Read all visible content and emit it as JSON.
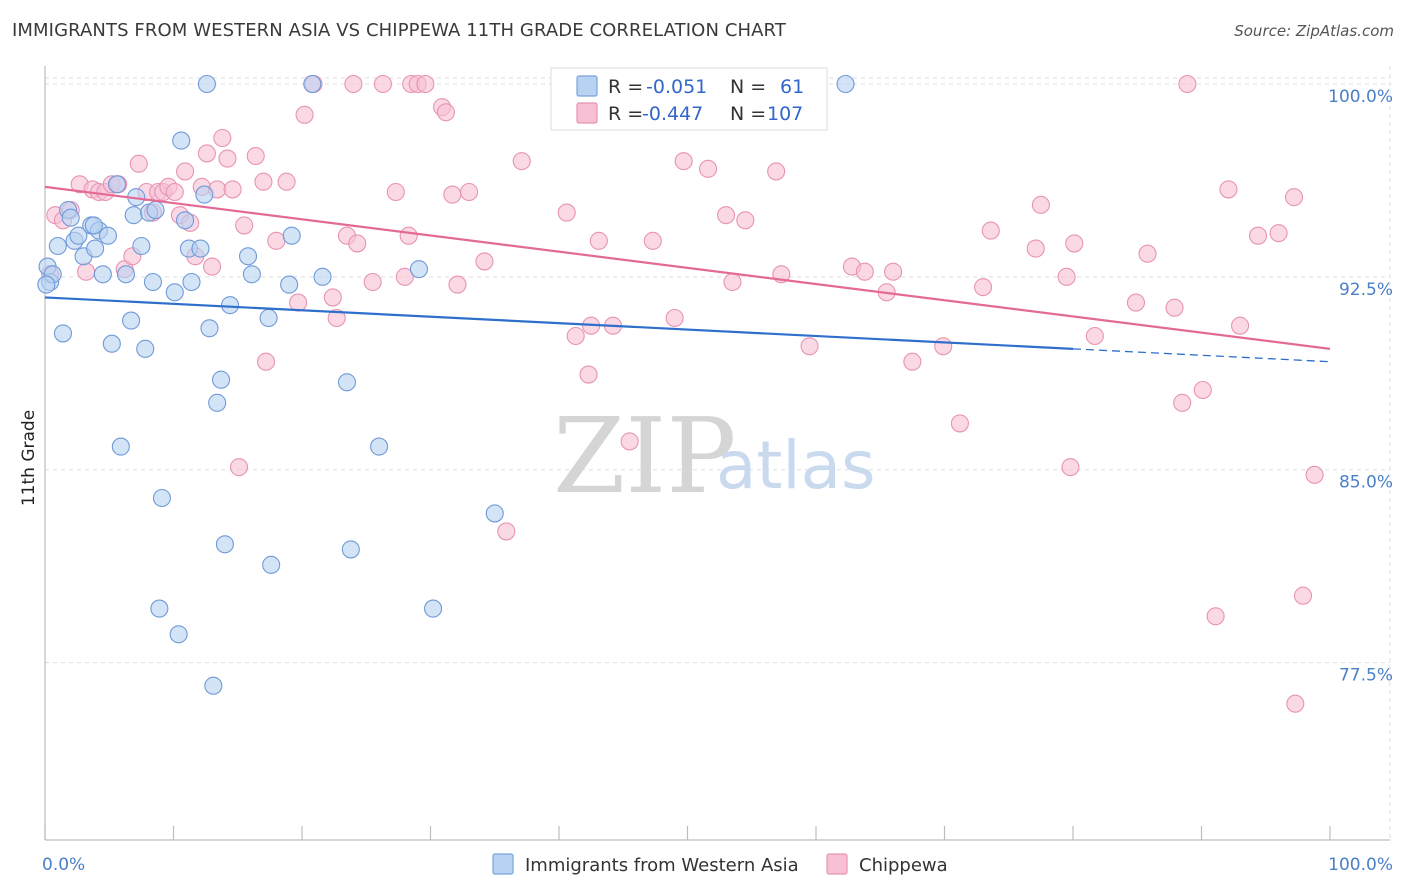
{
  "header": {
    "title": "IMMIGRANTS FROM WESTERN ASIA VS CHIPPEWA 11TH GRADE CORRELATION CHART",
    "source": "Source: ZipAtlas.com"
  },
  "watermark": {
    "part1": "ZIP",
    "part2": "atlas"
  },
  "colors": {
    "blue": "#4a84d4",
    "blue_fill": "#b8d2f2",
    "pink": "#e46a96",
    "pink_fill": "#f6bfd3",
    "grid": "#dedede",
    "axis_label": "#4a7fc9"
  },
  "legend_box": {
    "rows": [
      {
        "r_label": "R =",
        "r_value": "-0.051",
        "n_label": "N =",
        "n_value": "61"
      },
      {
        "r_label": "R =",
        "r_value": "-0.447",
        "n_label": "N =",
        "n_value": "107"
      }
    ]
  },
  "chart_data": {
    "type": "scatter",
    "xlabel": "",
    "ylabel": "11th Grade",
    "xlim": [
      0,
      100
    ],
    "ylim": [
      70.6,
      100.7
    ],
    "x_tick_labels": [
      "0.0%",
      "100.0%"
    ],
    "y_ticks": [
      100.0,
      92.5,
      85.0,
      77.5
    ],
    "y_tick_labels": [
      "100.0%",
      "92.5%",
      "85.0%",
      "77.5%"
    ],
    "grid": true,
    "legend_position": "bottom",
    "series": [
      {
        "name": "Immigrants from Western Asia",
        "color": "blue",
        "trend": {
          "x0": 0,
          "y0": 91.7,
          "x1": 80,
          "y1": 89.7,
          "dash_to_x": 100,
          "dash_to_y": 89.2
        },
        "points": [
          [
            0.2,
            92.9
          ],
          [
            0.4,
            92.3
          ],
          [
            0.6,
            92.6
          ],
          [
            1.0,
            93.7
          ],
          [
            1.4,
            90.3
          ],
          [
            1.8,
            95.1
          ],
          [
            2.0,
            94.8
          ],
          [
            2.3,
            93.9
          ],
          [
            2.6,
            94.1
          ],
          [
            3.0,
            93.3
          ],
          [
            3.6,
            94.5
          ],
          [
            3.9,
            93.6
          ],
          [
            4.2,
            94.3
          ],
          [
            4.5,
            92.6
          ],
          [
            4.9,
            94.1
          ],
          [
            5.2,
            89.9
          ],
          [
            5.6,
            96.1
          ],
          [
            5.9,
            85.9
          ],
          [
            6.3,
            92.6
          ],
          [
            6.7,
            90.8
          ],
          [
            6.9,
            94.9
          ],
          [
            7.1,
            95.6
          ],
          [
            7.5,
            93.7
          ],
          [
            7.8,
            89.7
          ],
          [
            8.1,
            95.0
          ],
          [
            8.4,
            92.3
          ],
          [
            8.6,
            95.1
          ],
          [
            8.9,
            79.6
          ],
          [
            9.1,
            83.9
          ],
          [
            10.1,
            91.9
          ],
          [
            10.4,
            78.6
          ],
          [
            10.6,
            97.8
          ],
          [
            10.9,
            94.7
          ],
          [
            11.2,
            93.6
          ],
          [
            11.4,
            92.3
          ],
          [
            12.1,
            93.6
          ],
          [
            12.4,
            95.7
          ],
          [
            12.6,
            100.0
          ],
          [
            12.8,
            90.5
          ],
          [
            13.1,
            76.6
          ],
          [
            13.4,
            87.6
          ],
          [
            13.7,
            88.5
          ],
          [
            14.0,
            82.1
          ],
          [
            14.4,
            91.4
          ],
          [
            15.8,
            93.3
          ],
          [
            16.1,
            92.6
          ],
          [
            17.4,
            90.9
          ],
          [
            17.6,
            81.3
          ],
          [
            19.0,
            92.2
          ],
          [
            19.2,
            94.1
          ],
          [
            20.8,
            100.0
          ],
          [
            21.6,
            92.5
          ],
          [
            23.5,
            88.4
          ],
          [
            23.8,
            81.9
          ],
          [
            26.0,
            85.9
          ],
          [
            29.1,
            92.8
          ],
          [
            30.2,
            79.6
          ],
          [
            35.0,
            83.3
          ],
          [
            62.3,
            100.0
          ],
          [
            0.1,
            92.2
          ],
          [
            3.8,
            94.5
          ]
        ]
      },
      {
        "name": "Chippewa",
        "color": "pink",
        "trend": {
          "x0": 0,
          "y0": 96.0,
          "x1": 100,
          "y1": 89.7
        },
        "points": [
          [
            0.4,
            92.6
          ],
          [
            0.8,
            94.9
          ],
          [
            1.4,
            94.7
          ],
          [
            2.0,
            95.1
          ],
          [
            2.7,
            96.1
          ],
          [
            3.2,
            92.7
          ],
          [
            3.7,
            95.9
          ],
          [
            4.2,
            95.8
          ],
          [
            4.7,
            95.8
          ],
          [
            5.2,
            96.1
          ],
          [
            5.7,
            96.1
          ],
          [
            6.2,
            92.8
          ],
          [
            6.8,
            93.3
          ],
          [
            7.3,
            96.9
          ],
          [
            7.9,
            95.8
          ],
          [
            8.4,
            95.0
          ],
          [
            8.8,
            95.8
          ],
          [
            9.2,
            95.8
          ],
          [
            9.6,
            96.0
          ],
          [
            10.1,
            95.8
          ],
          [
            10.5,
            94.9
          ],
          [
            10.9,
            96.6
          ],
          [
            11.3,
            94.6
          ],
          [
            11.7,
            93.3
          ],
          [
            12.2,
            96.0
          ],
          [
            12.6,
            97.3
          ],
          [
            13.0,
            92.9
          ],
          [
            13.4,
            95.9
          ],
          [
            13.8,
            97.9
          ],
          [
            14.2,
            97.1
          ],
          [
            14.6,
            95.9
          ],
          [
            15.1,
            85.1
          ],
          [
            15.5,
            94.5
          ],
          [
            16.4,
            97.2
          ],
          [
            17.0,
            96.2
          ],
          [
            17.2,
            89.2
          ],
          [
            18.0,
            93.9
          ],
          [
            18.8,
            96.2
          ],
          [
            19.7,
            91.5
          ],
          [
            20.2,
            98.8
          ],
          [
            20.9,
            100.0
          ],
          [
            22.4,
            91.7
          ],
          [
            22.7,
            90.9
          ],
          [
            23.5,
            94.1
          ],
          [
            24.0,
            100.0
          ],
          [
            24.3,
            93.8
          ],
          [
            25.5,
            92.3
          ],
          [
            26.3,
            100.0
          ],
          [
            27.3,
            95.8
          ],
          [
            28.0,
            92.5
          ],
          [
            28.3,
            94.1
          ],
          [
            28.5,
            100.0
          ],
          [
            29.0,
            100.0
          ],
          [
            29.6,
            100.0
          ],
          [
            30.9,
            99.1
          ],
          [
            31.2,
            98.9
          ],
          [
            31.7,
            95.7
          ],
          [
            32.1,
            92.2
          ],
          [
            33.0,
            95.8
          ],
          [
            34.2,
            93.1
          ],
          [
            35.9,
            82.6
          ],
          [
            37.1,
            97.0
          ],
          [
            40.6,
            95.0
          ],
          [
            41.3,
            90.2
          ],
          [
            42.3,
            88.7
          ],
          [
            42.5,
            90.6
          ],
          [
            43.1,
            93.9
          ],
          [
            44.2,
            90.6
          ],
          [
            45.5,
            86.1
          ],
          [
            47.3,
            93.9
          ],
          [
            49.0,
            90.9
          ],
          [
            49.7,
            97.0
          ],
          [
            51.6,
            96.7
          ],
          [
            53.0,
            94.9
          ],
          [
            53.5,
            92.3
          ],
          [
            54.5,
            94.7
          ],
          [
            56.9,
            96.6
          ],
          [
            57.3,
            92.6
          ],
          [
            59.5,
            89.8
          ],
          [
            62.8,
            92.9
          ],
          [
            63.8,
            92.7
          ],
          [
            65.5,
            91.9
          ],
          [
            66.0,
            92.7
          ],
          [
            67.5,
            89.2
          ],
          [
            69.9,
            89.8
          ],
          [
            71.2,
            86.8
          ],
          [
            73.0,
            92.1
          ],
          [
            73.6,
            94.3
          ],
          [
            77.1,
            93.6
          ],
          [
            77.5,
            95.3
          ],
          [
            79.5,
            92.5
          ],
          [
            79.8,
            85.1
          ],
          [
            80.1,
            93.8
          ],
          [
            81.7,
            90.2
          ],
          [
            84.9,
            91.5
          ],
          [
            85.8,
            93.4
          ],
          [
            87.9,
            91.3
          ],
          [
            88.5,
            87.6
          ],
          [
            88.9,
            100.0
          ],
          [
            90.1,
            88.1
          ],
          [
            91.1,
            79.3
          ],
          [
            92.1,
            95.9
          ],
          [
            93.0,
            90.6
          ],
          [
            94.4,
            94.1
          ],
          [
            96.0,
            94.2
          ],
          [
            97.2,
            95.6
          ],
          [
            97.3,
            75.9
          ],
          [
            97.9,
            80.1
          ],
          [
            98.8,
            84.8
          ]
        ]
      }
    ]
  }
}
